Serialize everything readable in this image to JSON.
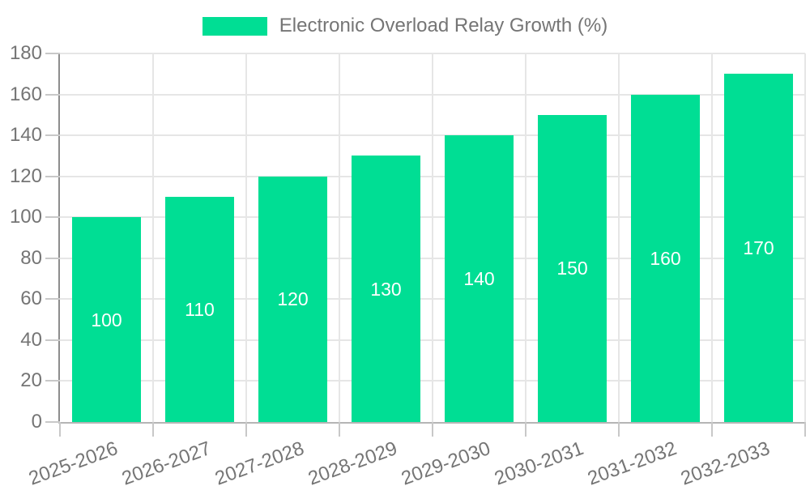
{
  "chart_data": {
    "type": "bar",
    "title": "Electronic Overload Relay Growth (%)",
    "categories": [
      "2025-2026",
      "2026-2027",
      "2027-2028",
      "2028-2029",
      "2029-2030",
      "2030-2031",
      "2031-2032",
      "2032-2033"
    ],
    "values": [
      100,
      110,
      120,
      130,
      140,
      150,
      160,
      170
    ],
    "bar_labels": [
      "100",
      "110",
      "120",
      "130",
      "140",
      "150",
      "160",
      "170"
    ],
    "xlabel": "",
    "ylabel": "",
    "ylim": [
      0,
      180
    ],
    "ytick_step": 20,
    "yticks": [
      0,
      20,
      40,
      60,
      80,
      100,
      120,
      140,
      160,
      180
    ],
    "grid": true,
    "legend_position": "top-center",
    "x_label_rotation_deg": -20,
    "colors": {
      "bar": "#00DE94",
      "bar_label": "#ffffff",
      "axis_text": "#757575",
      "gridline": "#e6e6e6",
      "y_axis_line": "#8d8d8d",
      "x_axis_line": "#b5b5b5",
      "tick": "#c8c8c8"
    }
  }
}
